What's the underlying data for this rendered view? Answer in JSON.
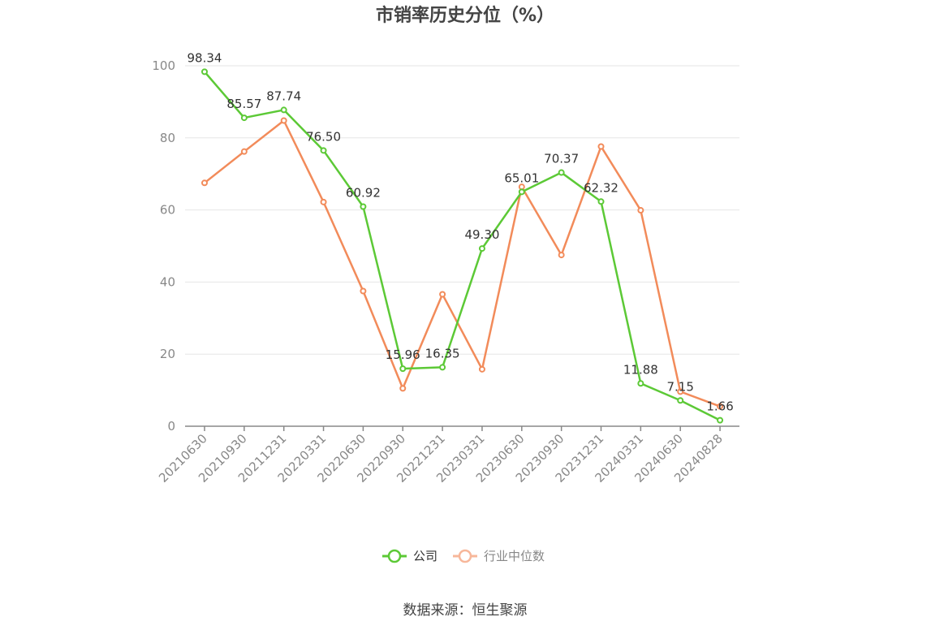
{
  "chart_data": {
    "type": "line",
    "title": "市销率历史分位（%）",
    "categories": [
      "20210630",
      "20210930",
      "20211231",
      "20220331",
      "20220630",
      "20220930",
      "20221231",
      "20230331",
      "20230630",
      "20230930",
      "20231231",
      "20240331",
      "20240630",
      "20240828"
    ],
    "series": [
      {
        "name": "公司",
        "color": "#5cc936",
        "values": [
          98.34,
          85.57,
          87.74,
          76.5,
          60.92,
          15.96,
          16.35,
          49.3,
          65.01,
          70.37,
          62.32,
          11.88,
          7.15,
          1.66
        ],
        "labels": [
          "98.34",
          "85.57",
          "87.74",
          "76.50",
          "60.92",
          "15.96",
          "16.35",
          "49.30",
          "65.01",
          "70.37",
          "62.32",
          "11.88",
          "7.15",
          "1.66"
        ]
      },
      {
        "name": "行业中位数",
        "color": "#f28b5a",
        "values": [
          67.5,
          76.2,
          84.8,
          62.2,
          37.5,
          10.5,
          36.6,
          15.8,
          66.4,
          47.5,
          77.6,
          59.9,
          9.6,
          5.5
        ]
      }
    ],
    "y_ticks": [
      "0",
      "20",
      "40",
      "60",
      "80",
      "100"
    ],
    "ylim": [
      0,
      100
    ],
    "grid": true,
    "legend_position": "bottom"
  },
  "source_text": "数据来源：恒生聚源"
}
